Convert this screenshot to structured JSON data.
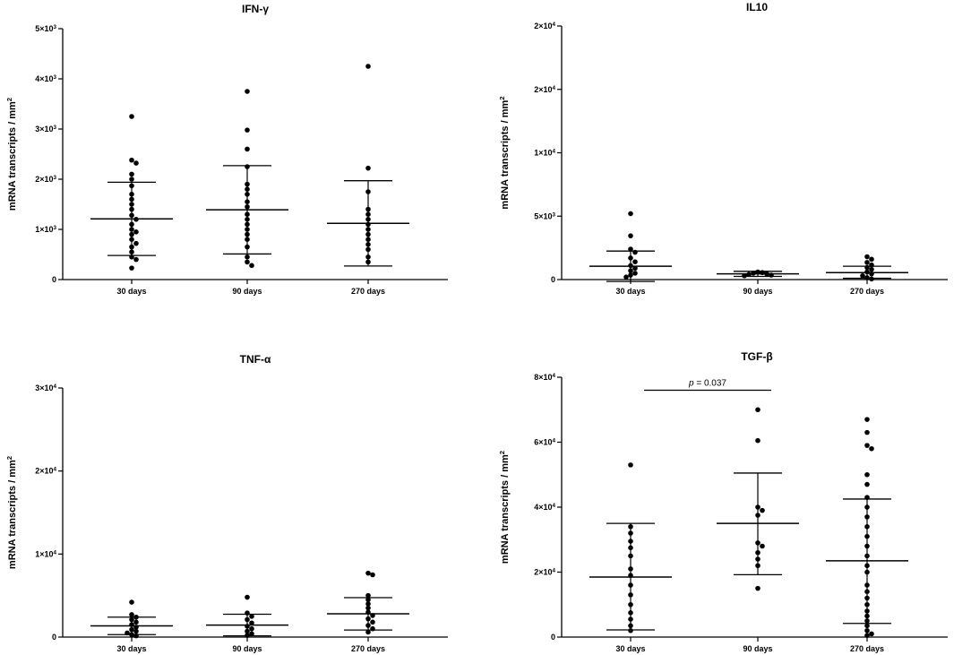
{
  "figure": {
    "background": "#ffffff",
    "ink": "#000000"
  },
  "chart_data": [
    {
      "id": "ifn",
      "type": "scatter",
      "title": "IFN-γ",
      "ylabel": "mRNA transcripts / mm",
      "ylabel_sup": "2",
      "categories": [
        "30 days",
        "90 days",
        "270 days"
      ],
      "ylim": [
        0,
        5000
      ],
      "yticks": [
        {
          "v": 0,
          "base": "0",
          "exp": ""
        },
        {
          "v": 1000,
          "base": "1×10",
          "exp": "3"
        },
        {
          "v": 2000,
          "base": "2×10",
          "exp": "3"
        },
        {
          "v": 3000,
          "base": "3×10",
          "exp": "3"
        },
        {
          "v": 4000,
          "base": "4×10",
          "exp": "3"
        },
        {
          "v": 5000,
          "base": "5×10",
          "exp": "3"
        }
      ],
      "series": [
        {
          "name": "30 days",
          "mean": 1210,
          "sd_low": 480,
          "sd_high": 1940,
          "values": [
            3250,
            2380,
            2320,
            2100,
            2000,
            1870,
            1700,
            1600,
            1500,
            1400,
            1280,
            1200,
            1100,
            1000,
            950,
            900,
            800,
            720,
            650,
            550,
            450,
            400,
            230
          ]
        },
        {
          "name": "90 days",
          "mean": 1390,
          "sd_low": 510,
          "sd_high": 2270,
          "values": [
            3750,
            2980,
            2600,
            2250,
            1900,
            1800,
            1700,
            1550,
            1450,
            1300,
            1200,
            1100,
            1000,
            900,
            800,
            650,
            450,
            350,
            280
          ]
        },
        {
          "name": "270 days",
          "mean": 1120,
          "sd_low": 270,
          "sd_high": 1970,
          "values": [
            4250,
            2220,
            1750,
            1400,
            1300,
            1200,
            1100,
            1000,
            900,
            800,
            700,
            600,
            450,
            350
          ]
        }
      ]
    },
    {
      "id": "il10",
      "type": "scatter",
      "title": "IL10",
      "ylabel": "mRNA transcripts / mm",
      "ylabel_sup": "2",
      "categories": [
        "30 days",
        "90 days",
        "270 days"
      ],
      "ylim": [
        0,
        20000
      ],
      "yticks": [
        {
          "v": 0,
          "base": "0",
          "exp": ""
        },
        {
          "v": 5000,
          "base": "5×10",
          "exp": "3"
        },
        {
          "v": 10000,
          "base": "1×10",
          "exp": "4"
        },
        {
          "v": 15000,
          "base": "2×10",
          "exp": "4"
        },
        {
          "v": 20000,
          "base": "2×10",
          "exp": "4"
        }
      ],
      "series": [
        {
          "name": "30 days",
          "mean": 1050,
          "sd_low": -150,
          "sd_high": 2250,
          "values": [
            5200,
            3450,
            2400,
            2150,
            1700,
            1400,
            1100,
            900,
            700,
            500,
            350,
            200
          ]
        },
        {
          "name": "90 days",
          "mean": 450,
          "sd_low": 250,
          "sd_high": 650,
          "values": [
            600,
            550,
            500,
            450,
            400,
            350,
            300
          ]
        },
        {
          "name": "270 days",
          "mean": 550,
          "sd_low": 100,
          "sd_high": 1050,
          "values": [
            1800,
            1600,
            1350,
            1150,
            950,
            800,
            600,
            450,
            300,
            150,
            50
          ]
        }
      ]
    },
    {
      "id": "tnf",
      "type": "scatter",
      "title": "TNF-α",
      "ylabel": "mRNA transcripts / mm",
      "ylabel_sup": "2",
      "categories": [
        "30 days",
        "90 days",
        "270 days"
      ],
      "ylim": [
        0,
        30000
      ],
      "yticks": [
        {
          "v": 0,
          "base": "0",
          "exp": ""
        },
        {
          "v": 10000,
          "base": "1×10",
          "exp": "4"
        },
        {
          "v": 20000,
          "base": "2×10",
          "exp": "4"
        },
        {
          "v": 30000,
          "base": "3×10",
          "exp": "4"
        }
      ],
      "series": [
        {
          "name": "30 days",
          "mean": 1350,
          "sd_low": 300,
          "sd_high": 2400,
          "values": [
            4200,
            2700,
            2400,
            2100,
            1800,
            1500,
            1200,
            900,
            700,
            500,
            300,
            150
          ]
        },
        {
          "name": "90 days",
          "mean": 1450,
          "sd_low": 150,
          "sd_high": 2750,
          "values": [
            4800,
            2900,
            2500,
            2100,
            1700,
            1300,
            1000,
            700,
            400,
            200
          ]
        },
        {
          "name": "270 days",
          "mean": 2800,
          "sd_low": 850,
          "sd_high": 4750,
          "values": [
            7700,
            7500,
            5000,
            4500,
            4000,
            3500,
            3000,
            2600,
            2200,
            1800,
            1400,
            1000,
            600
          ]
        }
      ]
    },
    {
      "id": "tgf",
      "type": "scatter",
      "title": "TGF-β",
      "ylabel": "mRNA transcripts / mm",
      "ylabel_sup": "2",
      "categories": [
        "30 days",
        "90 days",
        "270 days"
      ],
      "ylim": [
        0,
        80000
      ],
      "yticks": [
        {
          "v": 0,
          "base": "0",
          "exp": ""
        },
        {
          "v": 20000,
          "base": "2×10",
          "exp": "4"
        },
        {
          "v": 40000,
          "base": "4×10",
          "exp": "4"
        },
        {
          "v": 60000,
          "base": "6×10",
          "exp": "4"
        },
        {
          "v": 80000,
          "base": "8×10",
          "exp": "4"
        }
      ],
      "annotation": {
        "p_symbol": "p",
        "p_text": " = 0.037",
        "from": 0,
        "to": 1,
        "y": 76000
      },
      "series": [
        {
          "name": "30 days",
          "mean": 18500,
          "sd_low": 2200,
          "sd_high": 35000,
          "values": [
            53000,
            34000,
            32000,
            29500,
            27500,
            25000,
            21000,
            19000,
            16000,
            13000,
            10000,
            7500,
            5500,
            3500,
            2000
          ]
        },
        {
          "name": "90 days",
          "mean": 35000,
          "sd_low": 19200,
          "sd_high": 50500,
          "values": [
            70000,
            60500,
            40000,
            39000,
            37500,
            29000,
            28000,
            26000,
            24000,
            22000,
            15000
          ]
        },
        {
          "name": "270 days",
          "mean": 23500,
          "sd_low": 4200,
          "sd_high": 42500,
          "values": [
            67000,
            63000,
            59000,
            58000,
            50000,
            47000,
            43000,
            40000,
            37000,
            34000,
            31000,
            28000,
            25000,
            22000,
            20000,
            16000,
            14000,
            12000,
            10000,
            8000,
            6500,
            5000,
            3500,
            2000,
            1000,
            500
          ]
        }
      ]
    }
  ]
}
